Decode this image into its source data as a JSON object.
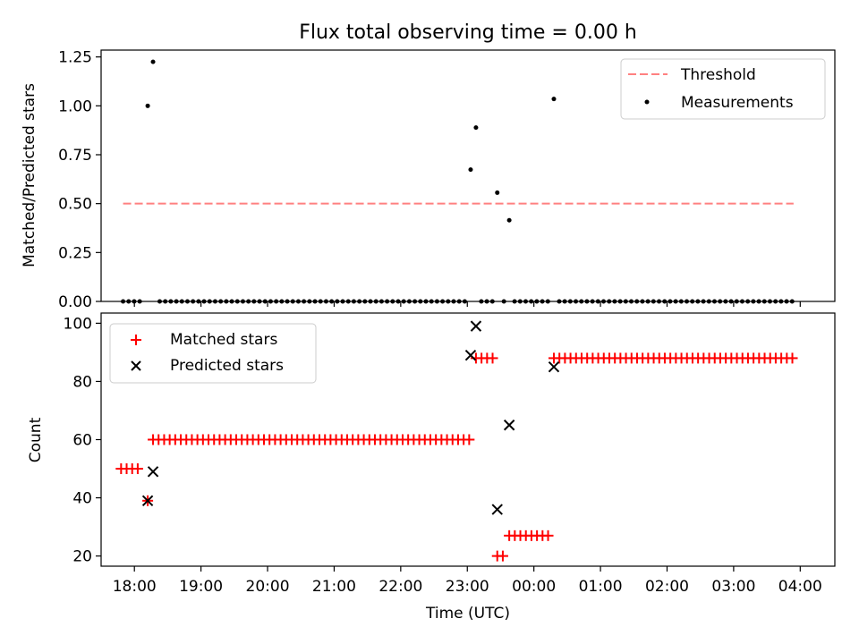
{
  "chart_data": [
    {
      "type": "scatter",
      "title": "Flux total observing time = 0.00 h",
      "ylabel": "Matched/Predicted stars",
      "xlabel": "",
      "xlim_hours": [
        17.5,
        28.52
      ],
      "ylim": [
        0,
        1.285
      ],
      "yticks": [
        0,
        0.25,
        0.5,
        0.75,
        1.0,
        1.25
      ],
      "ytick_labels": [
        "0.00",
        "0.25",
        "0.50",
        "0.75",
        "1.00",
        "1.25"
      ],
      "legend_position": "top-right",
      "series": [
        {
          "name": "Threshold",
          "kind": "dashed-line",
          "color": "#ff8080",
          "x": [
            17.83,
            27.9
          ],
          "y": [
            0.5,
            0.5
          ]
        },
        {
          "name": "Measurements",
          "kind": "points",
          "color": "#000000",
          "nonzero": [
            {
              "x": 18.2,
              "y": 1.0
            },
            {
              "x": 18.28,
              "y": 1.225
            },
            {
              "x": 23.05,
              "y": 0.674
            },
            {
              "x": 23.13,
              "y": 0.889
            },
            {
              "x": 23.45,
              "y": 0.556
            },
            {
              "x": 23.63,
              "y": 0.415
            },
            {
              "x": 24.3,
              "y": 1.035
            }
          ],
          "zero_ranges": [
            [
              17.83,
              18.13
            ],
            [
              18.38,
              22.98
            ],
            [
              23.21,
              23.38
            ],
            [
              23.55,
              23.55
            ],
            [
              23.71,
              24.22
            ],
            [
              24.38,
              27.9
            ]
          ],
          "zero_step": 0.0833
        }
      ]
    },
    {
      "type": "scatter",
      "ylabel": "Count",
      "xlabel": "Time (UTC)",
      "xlim_hours": [
        17.5,
        28.52
      ],
      "ylim": [
        16.5,
        103.5
      ],
      "yticks": [
        20,
        40,
        60,
        80,
        100
      ],
      "xticks_hours": [
        18,
        19,
        20,
        21,
        22,
        23,
        24,
        25,
        26,
        27,
        28
      ],
      "xtick_labels": [
        "18:00",
        "19:00",
        "20:00",
        "21:00",
        "22:00",
        "23:00",
        "00:00",
        "01:00",
        "02:00",
        "03:00",
        "04:00"
      ],
      "legend_position": "top-left",
      "series": [
        {
          "name": "Matched stars",
          "marker": "plus",
          "color": "#ff0000",
          "runs": [
            {
              "x0": 17.8,
              "x1": 18.13,
              "y": 50
            },
            {
              "x0": 18.2,
              "x1": 18.2,
              "y": 39
            },
            {
              "x0": 18.28,
              "x1": 23.05,
              "y": 60
            },
            {
              "x0": 23.13,
              "x1": 23.38,
              "y": 88
            },
            {
              "x0": 23.45,
              "x1": 23.55,
              "y": 20
            },
            {
              "x0": 23.63,
              "x1": 24.22,
              "y": 27
            },
            {
              "x0": 24.3,
              "x1": 27.9,
              "y": 88
            }
          ],
          "step": 0.0833
        },
        {
          "name": "Predicted stars",
          "marker": "x",
          "color": "#000000",
          "points": [
            {
              "x": 18.2,
              "y": 39
            },
            {
              "x": 18.28,
              "y": 49
            },
            {
              "x": 23.05,
              "y": 89
            },
            {
              "x": 23.13,
              "y": 99
            },
            {
              "x": 23.45,
              "y": 36
            },
            {
              "x": 23.63,
              "y": 65
            },
            {
              "x": 24.3,
              "y": 85
            }
          ]
        }
      ]
    }
  ]
}
